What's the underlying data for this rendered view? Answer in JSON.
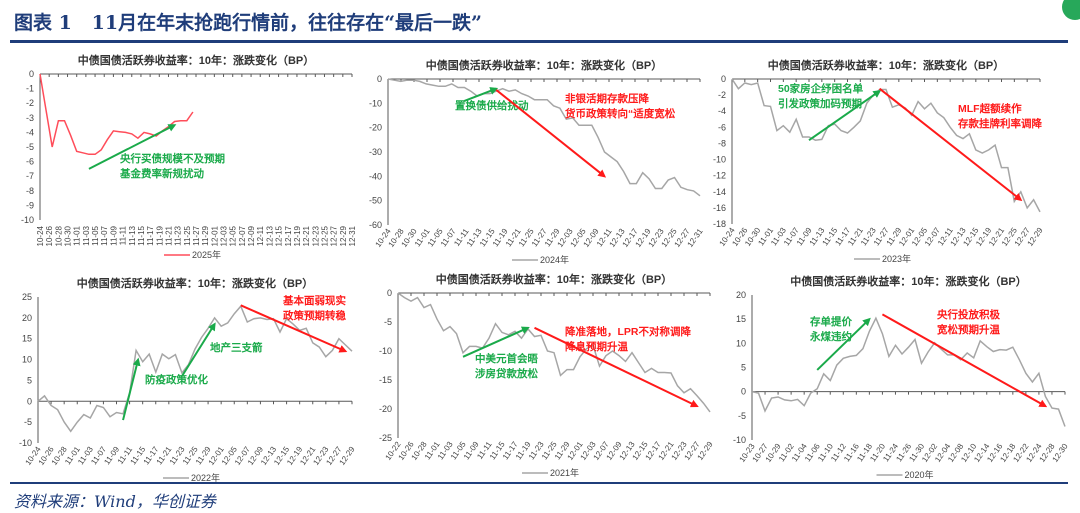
{
  "header": {
    "title": "图表 1   11月在年末抢跑行情前，往往存在“最后一跌”"
  },
  "footer": {
    "source": "资料来源：Wind，华创证券"
  },
  "colors": {
    "brand": "#1f3d7a",
    "series_2025": "#ff4d5a",
    "series_gray": "#a6a6a6",
    "up_arrow": "#1aaa4a",
    "down_arrow": "#ff1a1a",
    "axis": "#595959"
  },
  "icons": {
    "corner": "app-badge-icon"
  },
  "chart_data": [
    {
      "type": "line",
      "title": "中债国债活跃券收益率：10年：涨跌变化（BP）",
      "legend": "2025年",
      "legend_position": "bottom",
      "series_color": "#ff4d5a",
      "ylim": [
        -10,
        0
      ],
      "yticks": [
        0,
        -1,
        -2,
        -3,
        -4,
        -5,
        -6,
        -7,
        -8,
        -9,
        -10
      ],
      "x_labels": [
        "10-24",
        "10-26",
        "10-28",
        "10-30",
        "11-01",
        "11-03",
        "11-05",
        "11-07",
        "11-09",
        "11-11",
        "11-13",
        "11-15",
        "11-17",
        "11-19",
        "11-21",
        "11-23",
        "11-25",
        "11-27",
        "11-29",
        "12-01",
        "12-03",
        "12-05",
        "12-07",
        "12-09",
        "12-11",
        "12-13",
        "12-15",
        "12-17",
        "12-19",
        "12-21",
        "12-23",
        "12-25",
        "12-27",
        "12-29",
        "12-31"
      ],
      "n_slots": 52,
      "values": [
        0,
        -2.5,
        -5,
        -3.2,
        -3.2,
        -4.2,
        -5.3,
        -5.4,
        -5.5,
        -5.5,
        -5.2,
        -4.5,
        -3.9,
        -3.95,
        -4.0,
        -4.1,
        -4.4,
        -4.0,
        -4.1,
        -4.25,
        -3.9,
        -3.6,
        -3.25,
        -3.2,
        -3.2,
        -2.6
      ],
      "annotations": [
        {
          "color": "up",
          "lines": [
            "央行买债规模不及预期",
            "基金费率新规扰动"
          ],
          "arrow": [
            [
              8,
              -6.5
            ],
            [
              22,
              -3.5
            ]
          ]
        }
      ]
    },
    {
      "type": "line",
      "title": "中债国债活跃券收益率：10年：涨跌变化（BP）",
      "legend": "2024年",
      "legend_position": "bottom",
      "series_color": "#a6a6a6",
      "ylim": [
        -60,
        0
      ],
      "yticks": [
        0,
        -10,
        -20,
        -30,
        -40,
        -50,
        -60
      ],
      "x_labels": [
        "10-24",
        "10-28",
        "10-30",
        "11-01",
        "11-05",
        "11-07",
        "11-11",
        "11-13",
        "11-15",
        "11-19",
        "11-21",
        "11-25",
        "11-27",
        "11-29",
        "12-03",
        "12-05",
        "12-09",
        "12-11",
        "12-13",
        "12-17",
        "12-19",
        "12-23",
        "12-25",
        "12-27",
        "12-31"
      ],
      "n_slots": 50,
      "values": [
        0,
        -0.5,
        -1,
        -0.5,
        -0.5,
        -1,
        -2,
        -2.5,
        -3,
        -3,
        -2,
        -3.5,
        -3.5,
        -5,
        -7,
        -6,
        -6,
        -5,
        -4,
        -5,
        -4.5,
        -6,
        -7,
        -8.5,
        -8.5,
        -8.5,
        -11,
        -12,
        -16.5,
        -16,
        -19,
        -19,
        -19,
        -24,
        -30,
        -32,
        -34,
        -38,
        -43,
        -43,
        -38.5,
        -41,
        -45,
        -45,
        -41.5,
        -40.5,
        -44.5,
        -45.5,
        -46,
        -48
      ],
      "annotations": [
        {
          "color": "up",
          "lines": [
            "置换债供给扰动"
          ],
          "arrow": [
            [
              12,
              -9
            ],
            [
              17,
              -4
            ]
          ]
        },
        {
          "color": "down",
          "lines": [
            "非银活期存款压降",
            "货币政策转向“适度宽松"
          ],
          "arrow": [
            [
              17,
              -4.5
            ],
            [
              34,
              -40
            ]
          ]
        }
      ]
    },
    {
      "type": "line",
      "title": "中债国债活跃券收益率：10年：涨跌变化（BP）",
      "legend": "2023年",
      "legend_position": "bottom",
      "series_color": "#a6a6a6",
      "ylim": [
        -18,
        0
      ],
      "yticks": [
        0,
        -2,
        -4,
        -6,
        -8,
        -10,
        -12,
        -14,
        -16,
        -18
      ],
      "x_labels": [
        "10-24",
        "10-26",
        "10-30",
        "11-01",
        "11-03",
        "11-07",
        "11-09",
        "11-13",
        "11-15",
        "11-17",
        "11-21",
        "11-23",
        "11-27",
        "11-29",
        "12-01",
        "12-05",
        "12-07",
        "12-11",
        "12-13",
        "12-15",
        "12-19",
        "12-21",
        "12-25",
        "12-27",
        "12-29"
      ],
      "n_slots": 49,
      "values": [
        0,
        -1.2,
        -0.5,
        -0.7,
        -0.5,
        -3.3,
        -3.4,
        -6.4,
        -5.8,
        -6.6,
        -5,
        -7.2,
        -7.2,
        -7.6,
        -7.5,
        -5.8,
        -5.6,
        -6.4,
        -6.7,
        -6,
        -5.2,
        -3,
        -2,
        -1.3,
        -1.3,
        -3.5,
        -3.2,
        -3.6,
        -4.5,
        -2.8,
        -3.7,
        -3,
        -4.2,
        -4.8,
        -6,
        -7,
        -7.4,
        -6.8,
        -8.8,
        -9.2,
        -8.8,
        -8.2,
        -11,
        -11,
        -15.2,
        -14,
        -16,
        -15,
        -16.5
      ],
      "annotations": [
        {
          "color": "up",
          "lines": [
            "50家房企纾困名单",
            "引发政策加码预期"
          ],
          "arrow": [
            [
              12,
              -7.6
            ],
            [
              23,
              -1.5
            ]
          ]
        },
        {
          "color": "down",
          "lines": [
            "MLF超额续作",
            "存款挂牌利率调降"
          ],
          "arrow": [
            [
              23,
              -1.2
            ],
            [
              45,
              -15
            ]
          ]
        }
      ]
    },
    {
      "type": "line",
      "title": "中债国债活跃券收益率：10年：涨跌变化（BP）",
      "legend": "2022年",
      "legend_position": "bottom",
      "series_color": "#a6a6a6",
      "ylim": [
        -10,
        25
      ],
      "yticks": [
        25,
        20,
        15,
        10,
        5,
        0,
        -5,
        -10
      ],
      "x_labels": [
        "10-24",
        "10-26",
        "10-28",
        "11-01",
        "11-03",
        "11-07",
        "11-09",
        "11-11",
        "11-15",
        "11-17",
        "11-21",
        "11-23",
        "11-25",
        "11-29",
        "12-01",
        "12-05",
        "12-07",
        "12-09",
        "12-13",
        "12-15",
        "12-19",
        "12-21",
        "12-23",
        "12-27",
        "12-29"
      ],
      "n_slots": 49,
      "values": [
        0,
        1.3,
        -1,
        -2,
        -5,
        -7.2,
        -5,
        -3.2,
        -4,
        -1,
        -1.5,
        -3.7,
        -2.7,
        -3,
        2,
        12.2,
        9.5,
        11.3,
        7,
        11.3,
        10.2,
        11.2,
        6.8,
        8.8,
        12.5,
        15.3,
        17.5,
        20,
        18,
        18.8,
        21,
        22.8,
        19,
        19.8,
        20,
        19.6,
        19.8,
        16.6,
        19.8,
        18.5,
        17,
        17.5,
        14,
        13,
        10.7,
        12.2,
        15,
        13.5,
        12
      ],
      "annotations": [
        {
          "color": "up",
          "lines": [
            "防疫政策优化"
          ],
          "arrow": [
            [
              13,
              -4.5
            ],
            [
              15.3,
              10
            ]
          ]
        },
        {
          "color": "up",
          "lines": [
            "地产三支箭"
          ],
          "arrow": [
            [
              22,
              6
            ],
            [
              27,
              18.5
            ]
          ]
        },
        {
          "color": "down",
          "lines": [
            "基本面弱现实",
            "政策预期转稳"
          ],
          "arrow": [
            [
              31,
              23
            ],
            [
              47,
              12
            ]
          ]
        }
      ]
    },
    {
      "type": "line",
      "title": "中债国债活跃券收益率：10年：涨跌变化（BP）",
      "legend": "2021年",
      "legend_position": "bottom",
      "series_color": "#a6a6a6",
      "ylim": [
        -25,
        0
      ],
      "yticks": [
        0,
        -5,
        -10,
        -15,
        -20,
        -25
      ],
      "x_labels": [
        "10-22",
        "10-26",
        "10-28",
        "11-01",
        "11-03",
        "11-05",
        "11-09",
        "11-11",
        "11-15",
        "11-17",
        "11-19",
        "11-23",
        "11-25",
        "11-29",
        "12-01",
        "12-03",
        "12-07",
        "12-09",
        "12-13",
        "12-15",
        "12-17",
        "12-21",
        "12-23",
        "12-27",
        "12-29"
      ],
      "n_slots": 49,
      "values": [
        0,
        -0.8,
        -1.4,
        -0.8,
        -2.5,
        -2,
        -4.5,
        -6.5,
        -5.8,
        -7,
        -10.3,
        -9.2,
        -9.2,
        -9.5,
        -7.8,
        -5.3,
        -6.8,
        -7.2,
        -6.6,
        -7.8,
        -6.2,
        -7.5,
        -7.3,
        -10,
        -10.3,
        -14.2,
        -13.2,
        -13.2,
        -11,
        -9.6,
        -9,
        -12.6,
        -10.8,
        -10,
        -10.8,
        -11.8,
        -10.3,
        -12,
        -13.7,
        -13,
        -13.7,
        -13.7,
        -13.8,
        -16,
        -17.2,
        -16.5,
        -17.7,
        -19,
        -20.5
      ],
      "annotations": [
        {
          "color": "up",
          "lines": [
            "中美元首会晤",
            "涉房贷款放松"
          ],
          "arrow": [
            [
              10,
              -11
            ],
            [
              20,
              -6
            ]
          ]
        },
        {
          "color": "down",
          "lines": [
            "降准落地，LPR不对称调降",
            "降息预期升温"
          ],
          "arrow": [
            [
              21,
              -6
            ],
            [
              46,
              -19.5
            ]
          ]
        }
      ]
    },
    {
      "type": "line",
      "title": "中债国债活跃券收益率：10年：涨跌变化（BP）",
      "legend": "2020年",
      "legend_position": "bottom",
      "series_color": "#a6a6a6",
      "ylim": [
        -10,
        20
      ],
      "yticks": [
        20,
        15,
        10,
        5,
        0,
        -5,
        -10
      ],
      "x_labels": [
        "10-23",
        "10-27",
        "10-29",
        "11-02",
        "11-04",
        "11-06",
        "11-10",
        "11-12",
        "11-16",
        "11-18",
        "11-20",
        "11-24",
        "11-26",
        "11-30",
        "12-02",
        "12-04",
        "12-08",
        "12-10",
        "12-14",
        "12-16",
        "12-18",
        "12-22",
        "12-24",
        "12-28",
        "12-30"
      ],
      "n_slots": 49,
      "values": [
        0,
        -0.3,
        -4,
        -1.3,
        -1.1,
        -1.7,
        -1.9,
        -1.6,
        -2.9,
        -0.3,
        0.6,
        3.7,
        2.3,
        5.5,
        6.9,
        7.3,
        7.5,
        8.9,
        12.5,
        15.2,
        12,
        7.3,
        9.6,
        7.8,
        9.2,
        10.8,
        5.9,
        8.2,
        10.1,
        8.8,
        7.6,
        7.6,
        6.6,
        8,
        7,
        10.5,
        9.3,
        8.3,
        8.7,
        8.6,
        9.2,
        6.6,
        3.8,
        2,
        3.8,
        -1,
        -3.4,
        -3.6,
        -7.2
      ],
      "annotations": [
        {
          "color": "up",
          "lines": [
            "存单提价",
            "永煤违约"
          ],
          "arrow": [
            [
              10,
              4.5
            ],
            [
              18,
              15
            ]
          ]
        },
        {
          "color": "down",
          "lines": [
            "央行投放积极",
            "宽松预期升温"
          ],
          "arrow": [
            [
              20,
              16
            ],
            [
              45,
              -3
            ]
          ]
        }
      ]
    }
  ]
}
